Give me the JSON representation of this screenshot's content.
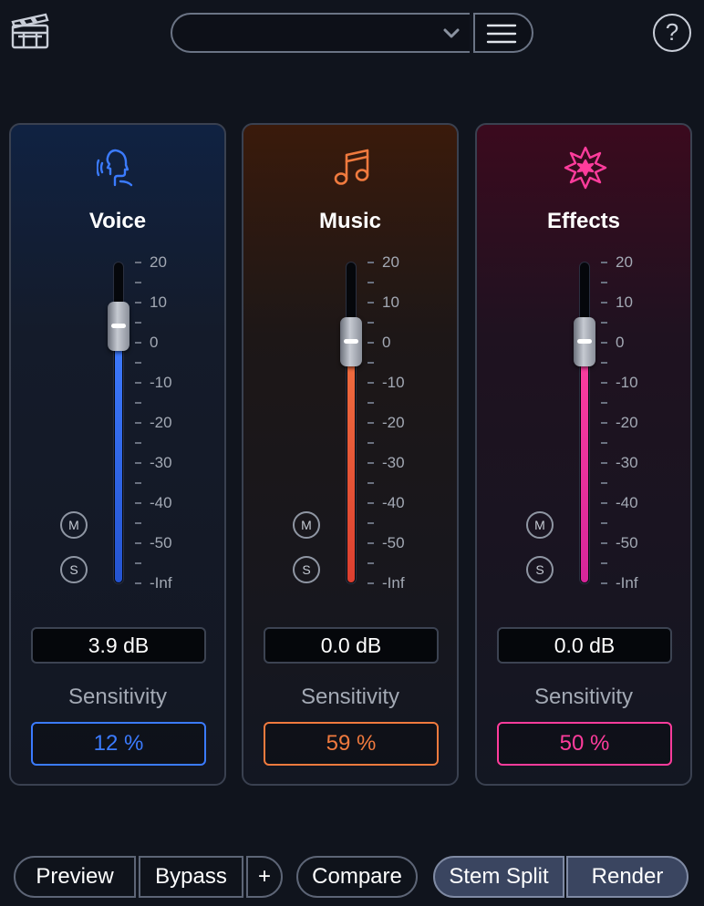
{
  "toolbar": {
    "clapper_icon": "clapperboard-icon",
    "preset_value": "",
    "caret_icon": "chevron-down-icon",
    "menu_icon": "hamburger-menu-icon",
    "help_label": "?"
  },
  "scale_labels": [
    "20",
    "10",
    "0",
    "-10",
    "-20",
    "-30",
    "-40",
    "-50",
    "-Inf"
  ],
  "stems": [
    {
      "key": "voice",
      "name": "Voice",
      "icon": "speaking-head-icon",
      "accent": "#3b7bff",
      "level_db": 3.9,
      "gain_label": "3.9 dB",
      "mute_label": "M",
      "solo_label": "S",
      "sensitivity_label": "Sensitivity",
      "sensitivity_value": "12 %"
    },
    {
      "key": "music",
      "name": "Music",
      "icon": "music-note-icon",
      "accent": "#f07a3e",
      "level_db": 0.0,
      "gain_label": "0.0 dB",
      "mute_label": "M",
      "solo_label": "S",
      "sensitivity_label": "Sensitivity",
      "sensitivity_value": "59 %"
    },
    {
      "key": "effects",
      "name": "Effects",
      "icon": "starburst-icon",
      "accent": "#ff3c9c",
      "level_db": 0.0,
      "gain_label": "0.0 dB",
      "mute_label": "M",
      "solo_label": "S",
      "sensitivity_label": "Sensitivity",
      "sensitivity_value": "50 %"
    }
  ],
  "bottom": {
    "preview": "Preview",
    "bypass": "Bypass",
    "plus": "+",
    "compare": "Compare",
    "stem_split": "Stem Split",
    "render": "Render"
  }
}
